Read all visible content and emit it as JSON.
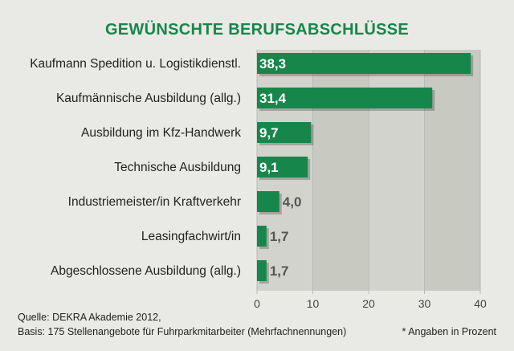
{
  "chart_data": {
    "type": "bar",
    "orientation": "horizontal",
    "title": "GEWÜNSCHTE BERUFSABSCHLÜSSE",
    "categories": [
      "Kaufmann Spedition u. Logistikdienstl.",
      "Kaufmännische Ausbildung (allg.)",
      "Ausbildung im Kfz-Handwerk",
      "Technische Ausbildung",
      "Industriemeister/in Kraftverkehr",
      "Leasingfachwirt/in",
      "Abgeschlossene Ausbildung (allg.)"
    ],
    "values": [
      38.3,
      31.4,
      9.7,
      9.1,
      4.0,
      1.7,
      1.7
    ],
    "value_labels": [
      "38,3",
      "31,4",
      "9,7",
      "9,1",
      "4,0",
      "1,7",
      "1,7"
    ],
    "xlim": [
      0,
      40
    ],
    "xticks": [
      0,
      10,
      20,
      30,
      40
    ],
    "grid": true,
    "colors": {
      "bar": "#17864a",
      "title": "#17864a",
      "panel_light": "#d2d3cc",
      "panel_dark": "#c8c9c1"
    }
  },
  "footer": {
    "source": "Quelle: DEKRA Akademie 2012,",
    "basis": "Basis: 175 Stellenangebote für Fuhrparkmitarbeiter (Mehrfachnennungen)",
    "note": "* Angaben in Prozent"
  }
}
